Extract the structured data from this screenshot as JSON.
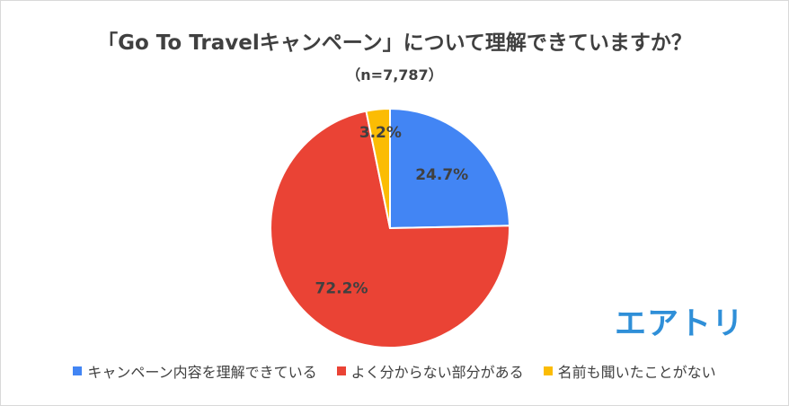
{
  "chart_data": {
    "type": "pie",
    "title": "「Go To Travelキャンペーン」について理解できていますか？",
    "subtitle": "（n=7,787）",
    "slices": [
      {
        "name": "キャンペーン内容を理解できている",
        "value": 24.7,
        "label": "24.7%",
        "color": "#4285f4"
      },
      {
        "name": "よく分からない部分がある",
        "value": 72.2,
        "label": "72.2%",
        "color": "#ea4335"
      },
      {
        "name": "名前も聞いたことがない",
        "value": 3.2,
        "label": "3.2%",
        "color": "#fbbc04"
      }
    ],
    "legend_position": "bottom"
  },
  "logo_text": "エアトリ"
}
